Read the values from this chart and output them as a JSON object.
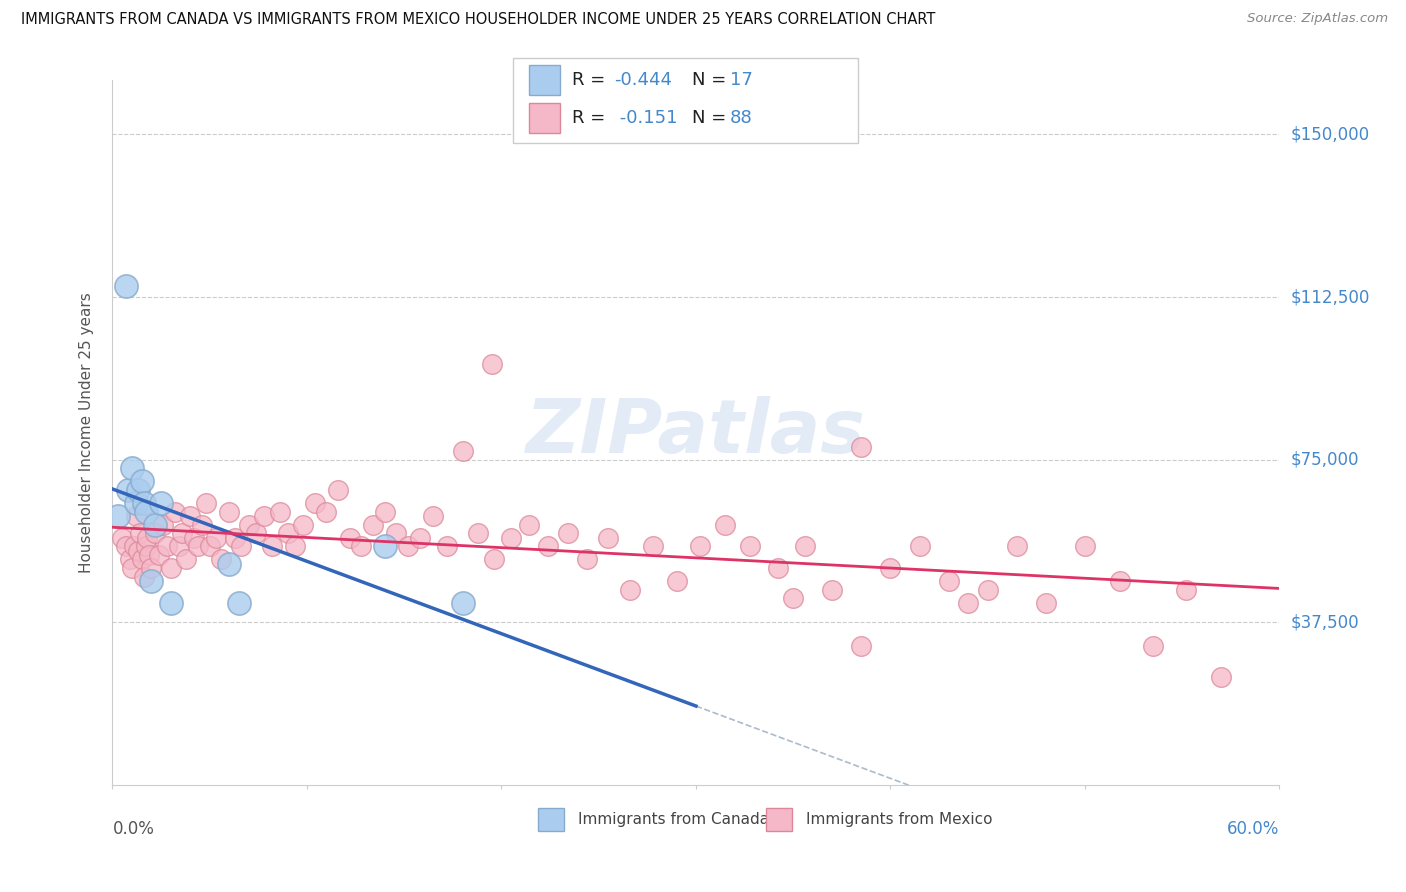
{
  "title": "IMMIGRANTS FROM CANADA VS IMMIGRANTS FROM MEXICO HOUSEHOLDER INCOME UNDER 25 YEARS CORRELATION CHART",
  "source": "Source: ZipAtlas.com",
  "ylabel": "Householder Income Under 25 years",
  "ytick_values": [
    37500,
    75000,
    112500,
    150000
  ],
  "ytick_labels": [
    "$37,500",
    "$75,000",
    "$112,500",
    "$150,000"
  ],
  "ymin": 0,
  "ymax": 162500,
  "xmin": 0.0,
  "xmax": 0.6,
  "canada_color": "#aaccee",
  "canada_edge_color": "#88aacc",
  "mexico_color": "#f5b8c8",
  "mexico_edge_color": "#dd8898",
  "trendline_canada_color": "#3366bb",
  "trendline_mexico_color": "#dd3366",
  "trendline_dashed_color": "#aabbcc",
  "blue_label_color": "#4488cc",
  "legend_R_canada": "-0.444",
  "legend_N_canada": "17",
  "legend_R_mexico": "-0.151",
  "legend_N_mexico": "88",
  "legend_label_canada": "Immigrants from Canada",
  "legend_label_mexico": "Immigrants from Mexico",
  "watermark": "ZIPatlas",
  "canada_x": [
    0.003,
    0.007,
    0.008,
    0.01,
    0.012,
    0.013,
    0.015,
    0.016,
    0.017,
    0.02,
    0.022,
    0.025,
    0.03,
    0.06,
    0.065,
    0.14,
    0.18
  ],
  "canada_y": [
    62000,
    115000,
    68000,
    73000,
    65000,
    68000,
    70000,
    65000,
    63000,
    47000,
    60000,
    65000,
    42000,
    51000,
    42000,
    55000,
    42000
  ],
  "mexico_x": [
    0.005,
    0.007,
    0.009,
    0.01,
    0.011,
    0.012,
    0.013,
    0.014,
    0.015,
    0.016,
    0.017,
    0.018,
    0.019,
    0.02,
    0.022,
    0.024,
    0.026,
    0.028,
    0.03,
    0.032,
    0.034,
    0.036,
    0.038,
    0.04,
    0.042,
    0.044,
    0.046,
    0.048,
    0.05,
    0.053,
    0.056,
    0.06,
    0.063,
    0.066,
    0.07,
    0.074,
    0.078,
    0.082,
    0.086,
    0.09,
    0.094,
    0.098,
    0.104,
    0.11,
    0.116,
    0.122,
    0.128,
    0.134,
    0.14,
    0.146,
    0.152,
    0.158,
    0.165,
    0.172,
    0.18,
    0.188,
    0.196,
    0.205,
    0.214,
    0.224,
    0.234,
    0.244,
    0.255,
    0.266,
    0.278,
    0.29,
    0.302,
    0.315,
    0.328,
    0.342,
    0.356,
    0.37,
    0.385,
    0.4,
    0.415,
    0.43,
    0.45,
    0.465,
    0.48,
    0.5,
    0.518,
    0.535,
    0.552,
    0.57,
    0.385,
    0.44,
    0.195,
    0.35
  ],
  "mexico_y": [
    57000,
    55000,
    52000,
    50000,
    55000,
    62000,
    54000,
    58000,
    52000,
    48000,
    55000,
    57000,
    53000,
    50000,
    58000,
    53000,
    60000,
    55000,
    50000,
    63000,
    55000,
    58000,
    52000,
    62000,
    57000,
    55000,
    60000,
    65000,
    55000,
    57000,
    52000,
    63000,
    57000,
    55000,
    60000,
    58000,
    62000,
    55000,
    63000,
    58000,
    55000,
    60000,
    65000,
    63000,
    68000,
    57000,
    55000,
    60000,
    63000,
    58000,
    55000,
    57000,
    62000,
    55000,
    77000,
    58000,
    52000,
    57000,
    60000,
    55000,
    58000,
    52000,
    57000,
    45000,
    55000,
    47000,
    55000,
    60000,
    55000,
    50000,
    55000,
    45000,
    32000,
    50000,
    55000,
    47000,
    45000,
    55000,
    42000,
    55000,
    47000,
    32000,
    45000,
    25000,
    78000,
    42000,
    97000,
    43000
  ]
}
